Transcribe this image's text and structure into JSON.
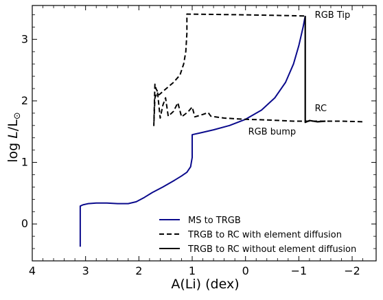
{
  "chart_data": {
    "type": "line",
    "xlabel": "A(Li) (dex)",
    "ylabel_main": "log ",
    "ylabel_sym": "L",
    "ylabel_sep": "/L",
    "ylabel_sub": "⊙",
    "xlim": [
      4,
      -2.45
    ],
    "ylim": [
      -0.6,
      3.55
    ],
    "x_ticks": [
      4,
      3,
      2,
      1,
      0,
      -1,
      -2
    ],
    "x_tick_labels": [
      "4",
      "3",
      "2",
      "1",
      "0",
      "−1",
      "−2"
    ],
    "y_ticks": [
      0,
      1,
      2,
      3
    ],
    "y_tick_labels": [
      "0",
      "1",
      "2",
      "3"
    ],
    "grid": false,
    "legend_position": "lower-right",
    "annotations": [
      {
        "text": "RGB Tip",
        "x": -1.3,
        "y": 3.35
      },
      {
        "text": "RGB bump",
        "x": -0.05,
        "y": 1.45
      },
      {
        "text": "RC",
        "x": -1.3,
        "y": 1.83
      }
    ],
    "series": [
      {
        "name": "MS to TRGB",
        "color": "#0a0a8c",
        "dash": "solid",
        "points": [
          [
            3.1,
            -0.37
          ],
          [
            3.1,
            0.29
          ],
          [
            3.05,
            0.31
          ],
          [
            2.95,
            0.33
          ],
          [
            2.8,
            0.34
          ],
          [
            2.6,
            0.34
          ],
          [
            2.4,
            0.33
          ],
          [
            2.2,
            0.33
          ],
          [
            2.05,
            0.36
          ],
          [
            1.9,
            0.43
          ],
          [
            1.75,
            0.51
          ],
          [
            1.55,
            0.6
          ],
          [
            1.35,
            0.7
          ],
          [
            1.2,
            0.78
          ],
          [
            1.1,
            0.84
          ],
          [
            1.03,
            0.93
          ],
          [
            1.0,
            1.08
          ],
          [
            1.0,
            1.45
          ],
          [
            0.85,
            1.48
          ],
          [
            0.6,
            1.53
          ],
          [
            0.3,
            1.6
          ],
          [
            0.0,
            1.7
          ],
          [
            -0.3,
            1.85
          ],
          [
            -0.55,
            2.05
          ],
          [
            -0.75,
            2.3
          ],
          [
            -0.9,
            2.6
          ],
          [
            -1.0,
            2.9
          ],
          [
            -1.08,
            3.2
          ],
          [
            -1.12,
            3.38
          ]
        ]
      },
      {
        "name": "TRGB to RC with element diffusion",
        "color": "#000000",
        "dash": "dashed",
        "points": [
          [
            -1.1,
            3.38
          ],
          [
            -0.5,
            3.39
          ],
          [
            0.2,
            3.4
          ],
          [
            1.1,
            3.41
          ],
          [
            1.1,
            3.1
          ],
          [
            1.12,
            2.8
          ],
          [
            1.16,
            2.6
          ],
          [
            1.23,
            2.42
          ],
          [
            1.35,
            2.3
          ],
          [
            1.5,
            2.19
          ],
          [
            1.62,
            2.1
          ],
          [
            1.68,
            2.2
          ],
          [
            1.7,
            2.27
          ],
          [
            1.72,
            1.6
          ],
          [
            1.7,
            2.05
          ],
          [
            1.65,
            2.14
          ],
          [
            1.6,
            1.72
          ],
          [
            1.55,
            1.93
          ],
          [
            1.5,
            2.05
          ],
          [
            1.45,
            1.75
          ],
          [
            1.35,
            1.83
          ],
          [
            1.27,
            1.97
          ],
          [
            1.2,
            1.74
          ],
          [
            1.08,
            1.82
          ],
          [
            1.0,
            1.9
          ],
          [
            0.95,
            1.74
          ],
          [
            0.8,
            1.78
          ],
          [
            0.7,
            1.81
          ],
          [
            0.65,
            1.75
          ],
          [
            0.4,
            1.72
          ],
          [
            0.0,
            1.7
          ],
          [
            -0.4,
            1.69
          ],
          [
            -0.9,
            1.67
          ],
          [
            -1.3,
            1.67
          ],
          [
            -1.8,
            1.67
          ],
          [
            -2.2,
            1.66
          ]
        ]
      },
      {
        "name": "TRGB to RC without element diffusion",
        "color": "#000000",
        "dash": "solid",
        "points": [
          [
            -1.12,
            3.38
          ],
          [
            -1.12,
            1.65
          ],
          [
            -1.2,
            1.68
          ],
          [
            -1.35,
            1.66
          ],
          [
            -1.5,
            1.67
          ]
        ]
      }
    ]
  }
}
